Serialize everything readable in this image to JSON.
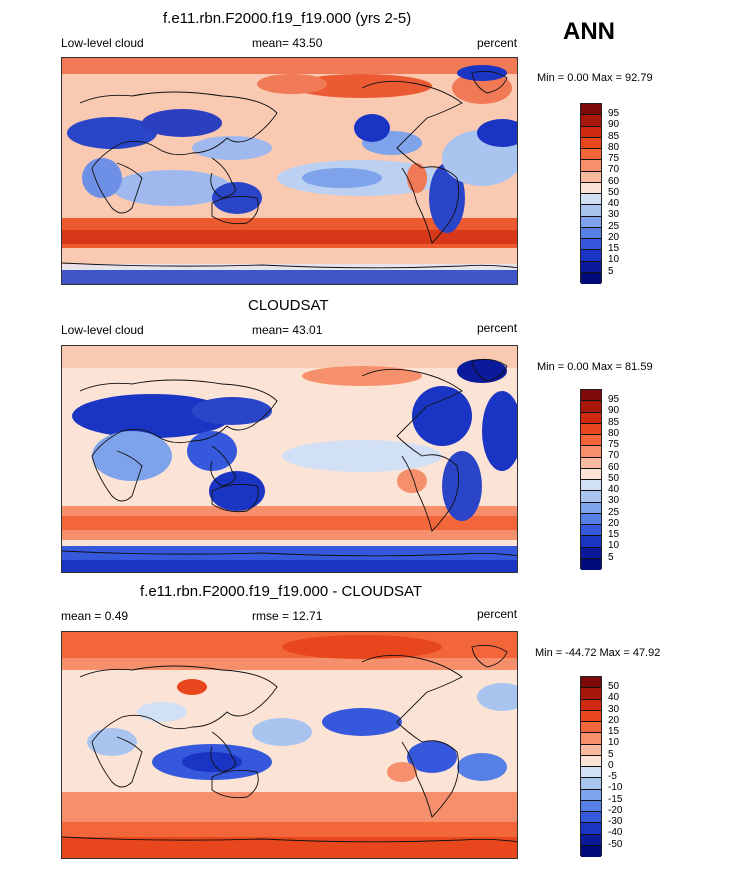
{
  "season": "ANN",
  "panels": [
    {
      "title": "f.e11.rbn.F2000.f19_f19.000 (yrs 2-5)",
      "left_label": "Low-level cloud",
      "center_label": "mean=  43.50",
      "right_label": "percent",
      "minmax": "Min =   0.00 Max =  92.79",
      "colorbar_labels": [
        "95",
        "90",
        "85",
        "80",
        "75",
        "70",
        "60",
        "50",
        "40",
        "30",
        "25",
        "20",
        "15",
        "10",
        "5"
      ]
    },
    {
      "title": "CLOUDSAT",
      "left_label": "Low-level cloud",
      "center_label": "mean=  43.01",
      "right_label": "percent",
      "minmax": "Min =   0.00 Max =  81.59",
      "colorbar_labels": [
        "95",
        "90",
        "85",
        "80",
        "75",
        "70",
        "60",
        "50",
        "40",
        "30",
        "25",
        "20",
        "15",
        "10",
        "5"
      ]
    },
    {
      "title": "f.e11.rbn.F2000.f19_f19.000 - CLOUDSAT",
      "left_label": "mean =   0.49",
      "center_label": "rmse =  12.71",
      "right_label": "percent",
      "minmax": "Min = -44.72 Max =  47.92",
      "colorbar_labels": [
        "50",
        "40",
        "30",
        "20",
        "15",
        "10",
        "5",
        "0",
        "-5",
        "-10",
        "-15",
        "-20",
        "-30",
        "-40",
        "-50"
      ]
    }
  ],
  "colors": {
    "scale": [
      "#7b0a08",
      "#a8170c",
      "#cf2a10",
      "#e8461c",
      "#f2663a",
      "#f6906c",
      "#f9bba0",
      "#fbe3d5",
      "#d2e0f5",
      "#a9c4ef",
      "#7ea3ea",
      "#5780e6",
      "#3558dc",
      "#1a35c4",
      "#0a1a9a",
      "#000a78"
    ]
  }
}
